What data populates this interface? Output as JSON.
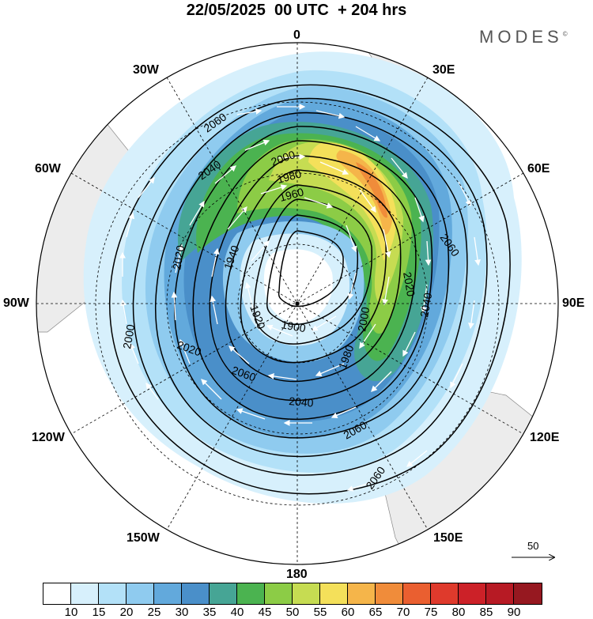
{
  "title": "22/05/2025  00 UTC  + 204 hrs",
  "brand": "MODES",
  "brand_mark": "©",
  "longitude_labels": {
    "lon_0": "0",
    "lon_30e": "30E",
    "lon_60e": "60E",
    "lon_90e": "90E",
    "lon_120e": "120E",
    "lon_150e": "150E",
    "lon_180": "180",
    "lon_150w": "150W",
    "lon_120w": "120W",
    "lon_90w": "90W",
    "lon_60w": "60W",
    "lon_30w": "30W"
  },
  "contour_labels": [
    "2060",
    "2040",
    "2020",
    "2000",
    "1980",
    "1960",
    "1940",
    "1920",
    "1900",
    "1980",
    "2000",
    "2020",
    "2040",
    "2060",
    "2060",
    "2040",
    "2020",
    "2000",
    "2060",
    "2060"
  ],
  "reference_vector": {
    "value": "50"
  },
  "colorbar": {
    "colors": [
      "#ffffff",
      "#d7f0fc",
      "#b3e1f8",
      "#8fcbef",
      "#62a9dc",
      "#4a8fc9",
      "#46a595",
      "#4bb350",
      "#8ccc46",
      "#c6dc52",
      "#f4e05a",
      "#f5b54a",
      "#f08c3a",
      "#ea5f30",
      "#df3a2c",
      "#cc2128",
      "#b71a24",
      "#961820"
    ],
    "ticks": [
      "10",
      "15",
      "20",
      "25",
      "30",
      "35",
      "40",
      "45",
      "50",
      "55",
      "60",
      "65",
      "70",
      "75",
      "80",
      "85",
      "90"
    ]
  }
}
